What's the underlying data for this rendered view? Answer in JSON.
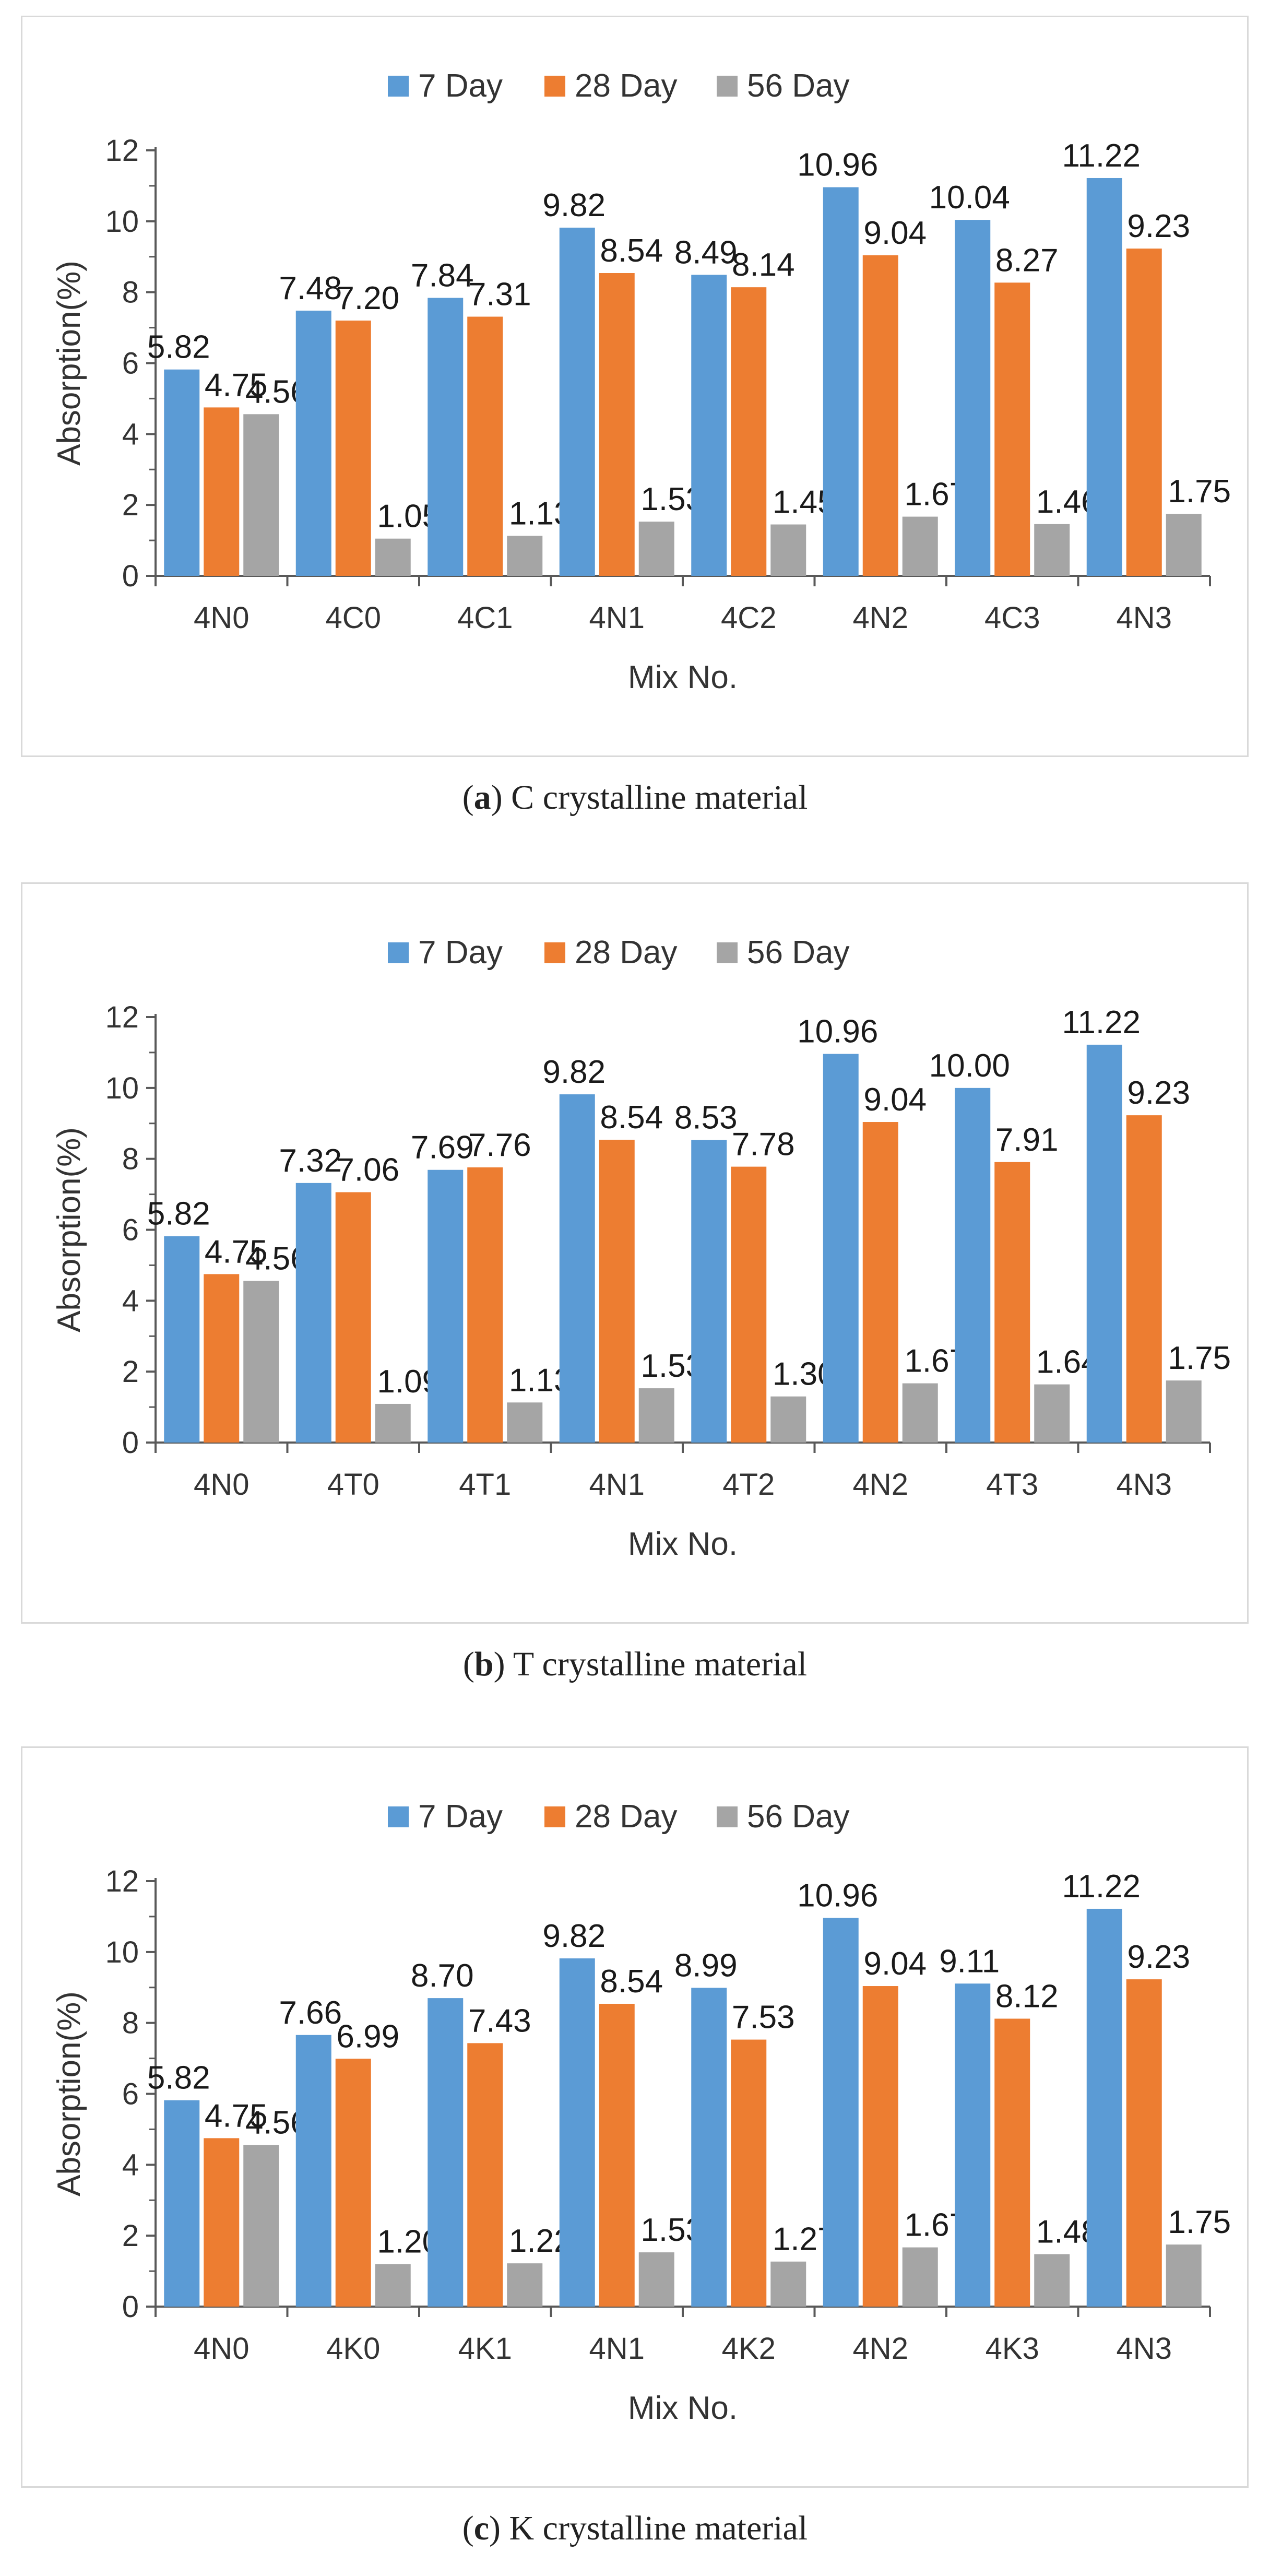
{
  "figures": [
    {
      "caption_letter": "a",
      "caption_rest": ") C crystalline material",
      "caption_open": "("
    },
    {
      "caption_letter": "b",
      "caption_rest": ") T crystalline material",
      "caption_open": "("
    },
    {
      "caption_letter": "c",
      "caption_rest": ") K crystalline material",
      "caption_open": "("
    }
  ],
  "colors": {
    "day7": "#5b9bd5",
    "day28": "#ed7d31",
    "day56": "#a5a5a5",
    "axis": "#595959"
  },
  "chart_data": [
    {
      "type": "bar",
      "title": "",
      "xlabel": "Mix No.",
      "ylabel": "Absorption(%)",
      "ylim": [
        0,
        12
      ],
      "yticks": [
        "0",
        "2",
        "4",
        "6",
        "8",
        "10",
        "12"
      ],
      "categories": [
        "4N0",
        "4C0",
        "4C1",
        "4N1",
        "4C2",
        "4N2",
        "4C3",
        "4N3"
      ],
      "series": [
        {
          "name": "7 Day",
          "values": [
            5.82,
            7.48,
            7.84,
            9.82,
            8.49,
            10.96,
            10.04,
            11.22
          ],
          "labels": [
            "5.82",
            "7.48",
            "7.84",
            "9.82",
            "8.49",
            "10.96",
            "10.04",
            "11.22"
          ]
        },
        {
          "name": "28 Day",
          "values": [
            4.75,
            7.2,
            7.31,
            8.54,
            8.14,
            9.04,
            8.27,
            9.23
          ],
          "labels": [
            "4.75",
            "7.20",
            "7.31",
            "8.54",
            "8.14",
            "9.04",
            "8.27",
            "9.23"
          ]
        },
        {
          "name": "56 Day",
          "values": [
            4.56,
            1.05,
            1.13,
            1.53,
            1.45,
            1.67,
            1.46,
            1.75
          ],
          "labels": [
            "4.56",
            "1.05",
            "1.13",
            "1.53",
            "1.45",
            "1.67",
            "1.46",
            "1.75"
          ]
        }
      ]
    },
    {
      "type": "bar",
      "title": "",
      "xlabel": "Mix No.",
      "ylabel": "Absorption(%)",
      "ylim": [
        0,
        12
      ],
      "yticks": [
        "0",
        "2",
        "4",
        "6",
        "8",
        "10",
        "12"
      ],
      "categories": [
        "4N0",
        "4T0",
        "4T1",
        "4N1",
        "4T2",
        "4N2",
        "4T3",
        "4N3"
      ],
      "series": [
        {
          "name": "7 Day",
          "values": [
            5.82,
            7.32,
            7.69,
            9.82,
            8.53,
            10.96,
            10.0,
            11.22
          ],
          "labels": [
            "5.82",
            "7.32",
            "7.69",
            "9.82",
            "8.53",
            "10.96",
            "10.00",
            "11.22"
          ]
        },
        {
          "name": "28 Day",
          "values": [
            4.75,
            7.06,
            7.76,
            8.54,
            7.78,
            9.04,
            7.91,
            9.23
          ],
          "labels": [
            "4.75",
            "7.06",
            "7.76",
            "8.54",
            "7.78",
            "9.04",
            "7.91",
            "9.23"
          ]
        },
        {
          "name": "56 Day",
          "values": [
            4.56,
            1.09,
            1.13,
            1.53,
            1.3,
            1.67,
            1.64,
            1.75
          ],
          "labels": [
            "4.56",
            "1.09",
            "1.13",
            "1.53",
            "1.30",
            "1.67",
            "1.64",
            "1.75"
          ]
        }
      ]
    },
    {
      "type": "bar",
      "title": "",
      "xlabel": "Mix No.",
      "ylabel": "Absorption(%)",
      "ylim": [
        0,
        12
      ],
      "yticks": [
        "0",
        "2",
        "4",
        "6",
        "8",
        "10",
        "12"
      ],
      "categories": [
        "4N0",
        "4K0",
        "4K1",
        "4N1",
        "4K2",
        "4N2",
        "4K3",
        "4N3"
      ],
      "series": [
        {
          "name": "7 Day",
          "values": [
            5.82,
            7.66,
            8.7,
            9.82,
            8.99,
            10.96,
            9.11,
            11.22
          ],
          "labels": [
            "5.82",
            "7.66",
            "8.70",
            "9.82",
            "8.99",
            "10.96",
            "9.11",
            "11.22"
          ]
        },
        {
          "name": "28 Day",
          "values": [
            4.75,
            6.99,
            7.43,
            8.54,
            7.53,
            9.04,
            8.12,
            9.23
          ],
          "labels": [
            "4.75",
            "6.99",
            "7.43",
            "8.54",
            "7.53",
            "9.04",
            "8.12",
            "9.23"
          ]
        },
        {
          "name": "56 Day",
          "values": [
            4.56,
            1.2,
            1.22,
            1.53,
            1.27,
            1.67,
            1.48,
            1.75
          ],
          "labels": [
            "4.56",
            "1.20",
            "1.22",
            "1.53",
            "1.27",
            "1.67",
            "1.48",
            "1.75"
          ]
        }
      ]
    }
  ]
}
